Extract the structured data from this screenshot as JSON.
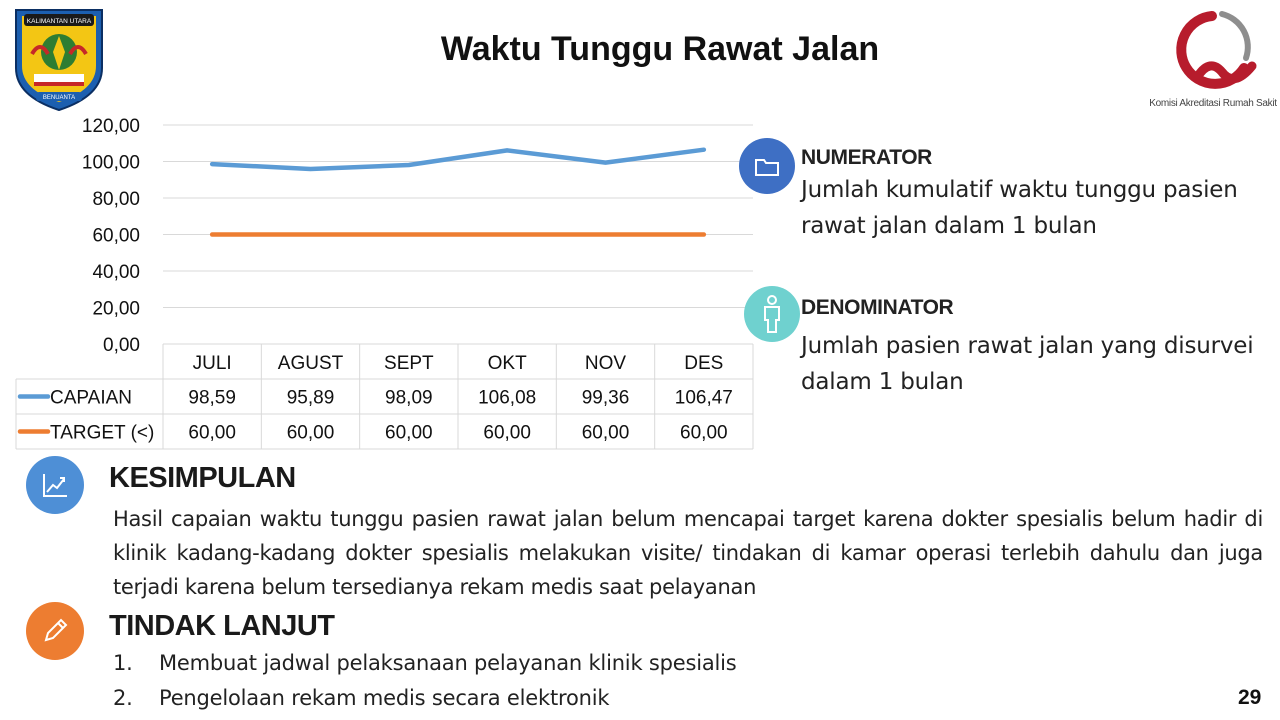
{
  "slide": {
    "title": "Waktu Tunggu Rawat Jalan",
    "page_number": "29"
  },
  "logos": {
    "left_emblem": {
      "text_top": "KALIMANTAN UTARA",
      "text_bottom": "BENUANTA"
    },
    "right": {
      "caption": "Komisi Akreditasi Rumah Sakit"
    }
  },
  "chart_data": {
    "type": "line",
    "categories": [
      "JULI",
      "AGUST",
      "SEPT",
      "OKT",
      "NOV",
      "DES"
    ],
    "series": [
      {
        "name": "CAPAIAN",
        "values": [
          98.59,
          95.89,
          98.09,
          106.08,
          99.36,
          106.47
        ],
        "display": [
          "98,59",
          "95,89",
          "98,09",
          "106,08",
          "99,36",
          "106,47"
        ],
        "color": "#5b9bd5"
      },
      {
        "name": "TARGET (<)",
        "values": [
          60,
          60,
          60,
          60,
          60,
          60
        ],
        "display": [
          "60,00",
          "60,00",
          "60,00",
          "60,00",
          "60,00",
          "60,00"
        ],
        "color": "#ed7d31"
      }
    ],
    "ylim": [
      0,
      120
    ],
    "yticks": [
      0,
      20,
      40,
      60,
      80,
      100,
      120
    ],
    "ytick_labels": [
      "0,00",
      "20,00",
      "40,00",
      "60,00",
      "80,00",
      "100,00",
      "120,00"
    ],
    "grid": true,
    "legend": "data-table",
    "title": "",
    "xlabel": "",
    "ylabel": ""
  },
  "numerator": {
    "heading": "NUMERATOR",
    "lines": [
      "Jumlah kumulatif waktu tunggu pasien",
      "rawat jalan dalam 1 bulan"
    ],
    "icon": "folder-icon",
    "color": "#3e6fc4"
  },
  "denominator": {
    "heading": "DENOMINATOR",
    "lines": [
      "Jumlah pasien rawat jalan yang disurvei",
      "dalam 1 bulan"
    ],
    "icon": "person-icon",
    "color": "#6fd1cf"
  },
  "kesimpulan": {
    "heading": "KESIMPULAN",
    "text": "Hasil capaian waktu tunggu pasien rawat jalan belum mencapai target karena dokter spesialis belum hadir di klinik  kadang-kadang dokter spesialis melakukan visite/ tindakan di kamar operasi terlebih dahulu dan juga terjadi karena belum tersedianya rekam medis saat pelayanan",
    "icon": "chart-icon",
    "color": "#4e8fd6"
  },
  "tindak_lanjut": {
    "heading": "TINDAK LANJUT",
    "items": [
      {
        "num": "1.",
        "text": "Membuat jadwal pelaksanaan pelayanan klinik spesialis"
      },
      {
        "num": "2.",
        "text": "Pengelolaan rekam medis secara elektronik"
      }
    ],
    "icon": "pencil-icon",
    "color": "#ed7d31"
  }
}
